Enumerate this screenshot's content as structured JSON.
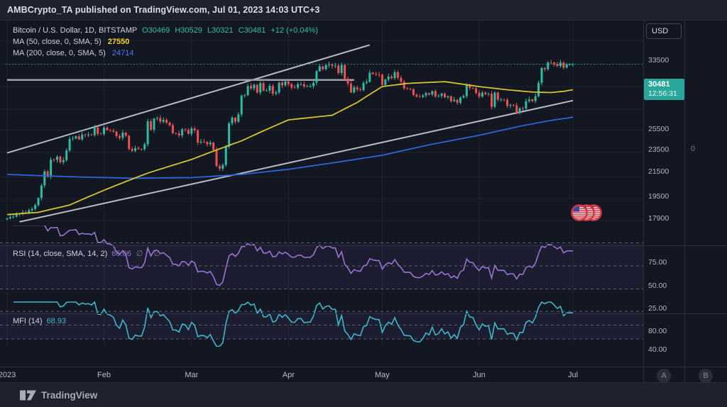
{
  "header": {
    "title": "AMBCrypto_TA published on TradingView.com, Jul 01, 2023 14:03 UTC+3"
  },
  "legend": {
    "symbol": "Bitcoin / U.S. Dollar, 1D, BITSTAMP",
    "ohlc": {
      "open": "O30469",
      "high": "H30529",
      "low": "L30321",
      "close": "C30481",
      "change": "+12 (+0.04%)"
    },
    "ma50_label": "MA (50, close, 0, SMA, 5)",
    "ma50_value": "27550",
    "ma200_label": "MA (200, close, 0, SMA, 5)",
    "ma200_value": "24714"
  },
  "rsi_pane": {
    "label": "RSI (14, close, SMA, 14, 2)",
    "value": "66.06",
    "empties": "∅ ∅",
    "ticks": [
      "75.00",
      "50.00",
      "25.00"
    ]
  },
  "mfi_pane": {
    "label": "MFI (14)",
    "value": "68.93",
    "ticks": [
      "80.00",
      "40.00"
    ]
  },
  "price_axis": {
    "currency_button": "USD",
    "ticks": [
      "33500",
      "25500",
      "23500",
      "21500",
      "19500",
      "17900"
    ],
    "last_price": "30481",
    "countdown": "12:56:31",
    "overlay_zero": "0"
  },
  "time_axis": {
    "labels": [
      {
        "text": "2023",
        "day": 0
      },
      {
        "text": "Feb",
        "day": 31
      },
      {
        "text": "Mar",
        "day": 59
      },
      {
        "text": "Apr",
        "day": 90
      },
      {
        "text": "May",
        "day": 120
      },
      {
        "text": "Jun",
        "day": 151
      },
      {
        "text": "Jul",
        "day": 181
      }
    ]
  },
  "buttons": {
    "scale_a": "A",
    "scale_b": "B"
  },
  "footer": {
    "brand": "TradingView"
  },
  "colors": {
    "up": "#2cbda5",
    "down": "#f0504e",
    "ma50": "#d4c331",
    "ma200": "#2e62d9",
    "rsi": "#9775cf",
    "mfi": "#3db7c7",
    "accent": "#2aa79b",
    "trendline": "#b6bac3",
    "ray": "#9da1ac",
    "grid": "#1e2332",
    "level_dash": "#5a5e69",
    "band_fill": "rgba(118,89,195,0.10)"
  },
  "chart_data": {
    "type": "candlestick",
    "title": "Bitcoin / U.S. Dollar, 1D, BITSTAMP",
    "last_ohlc": {
      "open": 30469,
      "high": 30529,
      "low": 30321,
      "close": 30481,
      "change": "+12 (+0.04%)"
    },
    "scale": "log",
    "ylabel": "USD",
    "xrange_days": [
      "Jan 01 2023",
      "Jul 01 2023"
    ],
    "price_ticks": [
      33500,
      25500,
      23500,
      21500,
      19500,
      17900
    ],
    "grid_prices": [
      37500,
      33500,
      30500,
      27900,
      25500,
      23500,
      21500,
      19500,
      17900,
      16400
    ],
    "closes": [
      16540,
      16620,
      16670,
      16850,
      16830,
      16950,
      16940,
      17090,
      17180,
      17440,
      17940,
      18850,
      19930,
      19510,
      20880,
      20870,
      21130,
      20680,
      20850,
      21660,
      22660,
      22710,
      22920,
      22630,
      23060,
      23010,
      23080,
      23030,
      23740,
      23140,
      23120,
      23720,
      23470,
      23430,
      23330,
      22930,
      22760,
      23240,
      22960,
      21790,
      21630,
      21860,
      21780,
      21770,
      22200,
      24320,
      23520,
      24570,
      24630,
      24280,
      24450,
      24180,
      23940,
      23190,
      23180,
      22990,
      23550,
      23490,
      23140,
      23640,
      23460,
      22350,
      22430,
      22410,
      22200,
      22350,
      21700,
      20360,
      20150,
      20450,
      21990,
      24120,
      24670,
      24280,
      24990,
      26910,
      26970,
      27970,
      27700,
      28100,
      27250,
      28290,
      27450,
      27460,
      27960,
      27120,
      27260,
      28340,
      28030,
      28470,
      28170,
      27800,
      27790,
      28160,
      28170,
      27910,
      27940,
      27950,
      28330,
      29650,
      30220,
      29890,
      30380,
      30470,
      30300,
      30310,
      29440,
      30390,
      28800,
      28240,
      27260,
      27810,
      27590,
      27510,
      28300,
      28420,
      29480,
      29320,
      29250,
      29230,
      28080,
      28680,
      29030,
      28850,
      29530,
      28890,
      28440,
      27690,
      27650,
      27620,
      27000,
      26800,
      26780,
      26930,
      27190,
      27030,
      27400,
      26820,
      26890,
      27120,
      26750,
      26850,
      26330,
      26480,
      26170,
      26710,
      26870,
      28080,
      27740,
      27700,
      27220,
      26820,
      27250,
      27080,
      27120,
      25750,
      27240,
      26480,
      26500,
      26480,
      25850,
      25940,
      25900,
      25110,
      25600,
      25580,
      26330,
      26510,
      26340,
      26850,
      28320,
      30030,
      29890,
      30700,
      30690,
      30480,
      30270,
      30690,
      30080,
      30450,
      30480,
      30481
    ],
    "ma50": {
      "period": 50,
      "last": 27550,
      "anchors": [
        [
          0,
          16800
        ],
        [
          10,
          16950
        ],
        [
          20,
          17450
        ],
        [
          31,
          18500
        ],
        [
          45,
          19800
        ],
        [
          59,
          20900
        ],
        [
          75,
          22500
        ],
        [
          90,
          24450
        ],
        [
          104,
          24900
        ],
        [
          112,
          26200
        ],
        [
          120,
          27900
        ],
        [
          128,
          28250
        ],
        [
          140,
          28450
        ],
        [
          151,
          27900
        ],
        [
          160,
          27550
        ],
        [
          168,
          27300
        ],
        [
          174,
          27250
        ],
        [
          178,
          27380
        ],
        [
          181,
          27550
        ]
      ]
    },
    "ma200": {
      "period": 200,
      "last": 24714,
      "anchors": [
        [
          0,
          19700
        ],
        [
          20,
          19520
        ],
        [
          40,
          19400
        ],
        [
          59,
          19450
        ],
        [
          75,
          19700
        ],
        [
          90,
          20100
        ],
        [
          105,
          20650
        ],
        [
          120,
          21250
        ],
        [
          135,
          22150
        ],
        [
          151,
          23000
        ],
        [
          165,
          23900
        ],
        [
          173,
          24350
        ],
        [
          181,
          24714
        ]
      ]
    },
    "trendlines": [
      {
        "name": "channel-upper",
        "from": {
          "day": 0,
          "price": 21450
        },
        "to": {
          "day": 116,
          "price": 32900
        }
      },
      {
        "name": "channel-lower",
        "from": {
          "day": 4,
          "price": 16320
        },
        "to": {
          "day": 181,
          "price": 26400
        }
      }
    ],
    "horizontal_ray": {
      "price": 28650,
      "from_day": 0,
      "to_day": 111
    },
    "last_price_line": {
      "price": 30481
    },
    "rsi": {
      "period": 14,
      "last": 66.06,
      "band_levels": [
        75,
        50,
        25
      ]
    },
    "mfi": {
      "period": 14,
      "last": 68.93,
      "band_levels": [
        80,
        50,
        20
      ]
    }
  }
}
